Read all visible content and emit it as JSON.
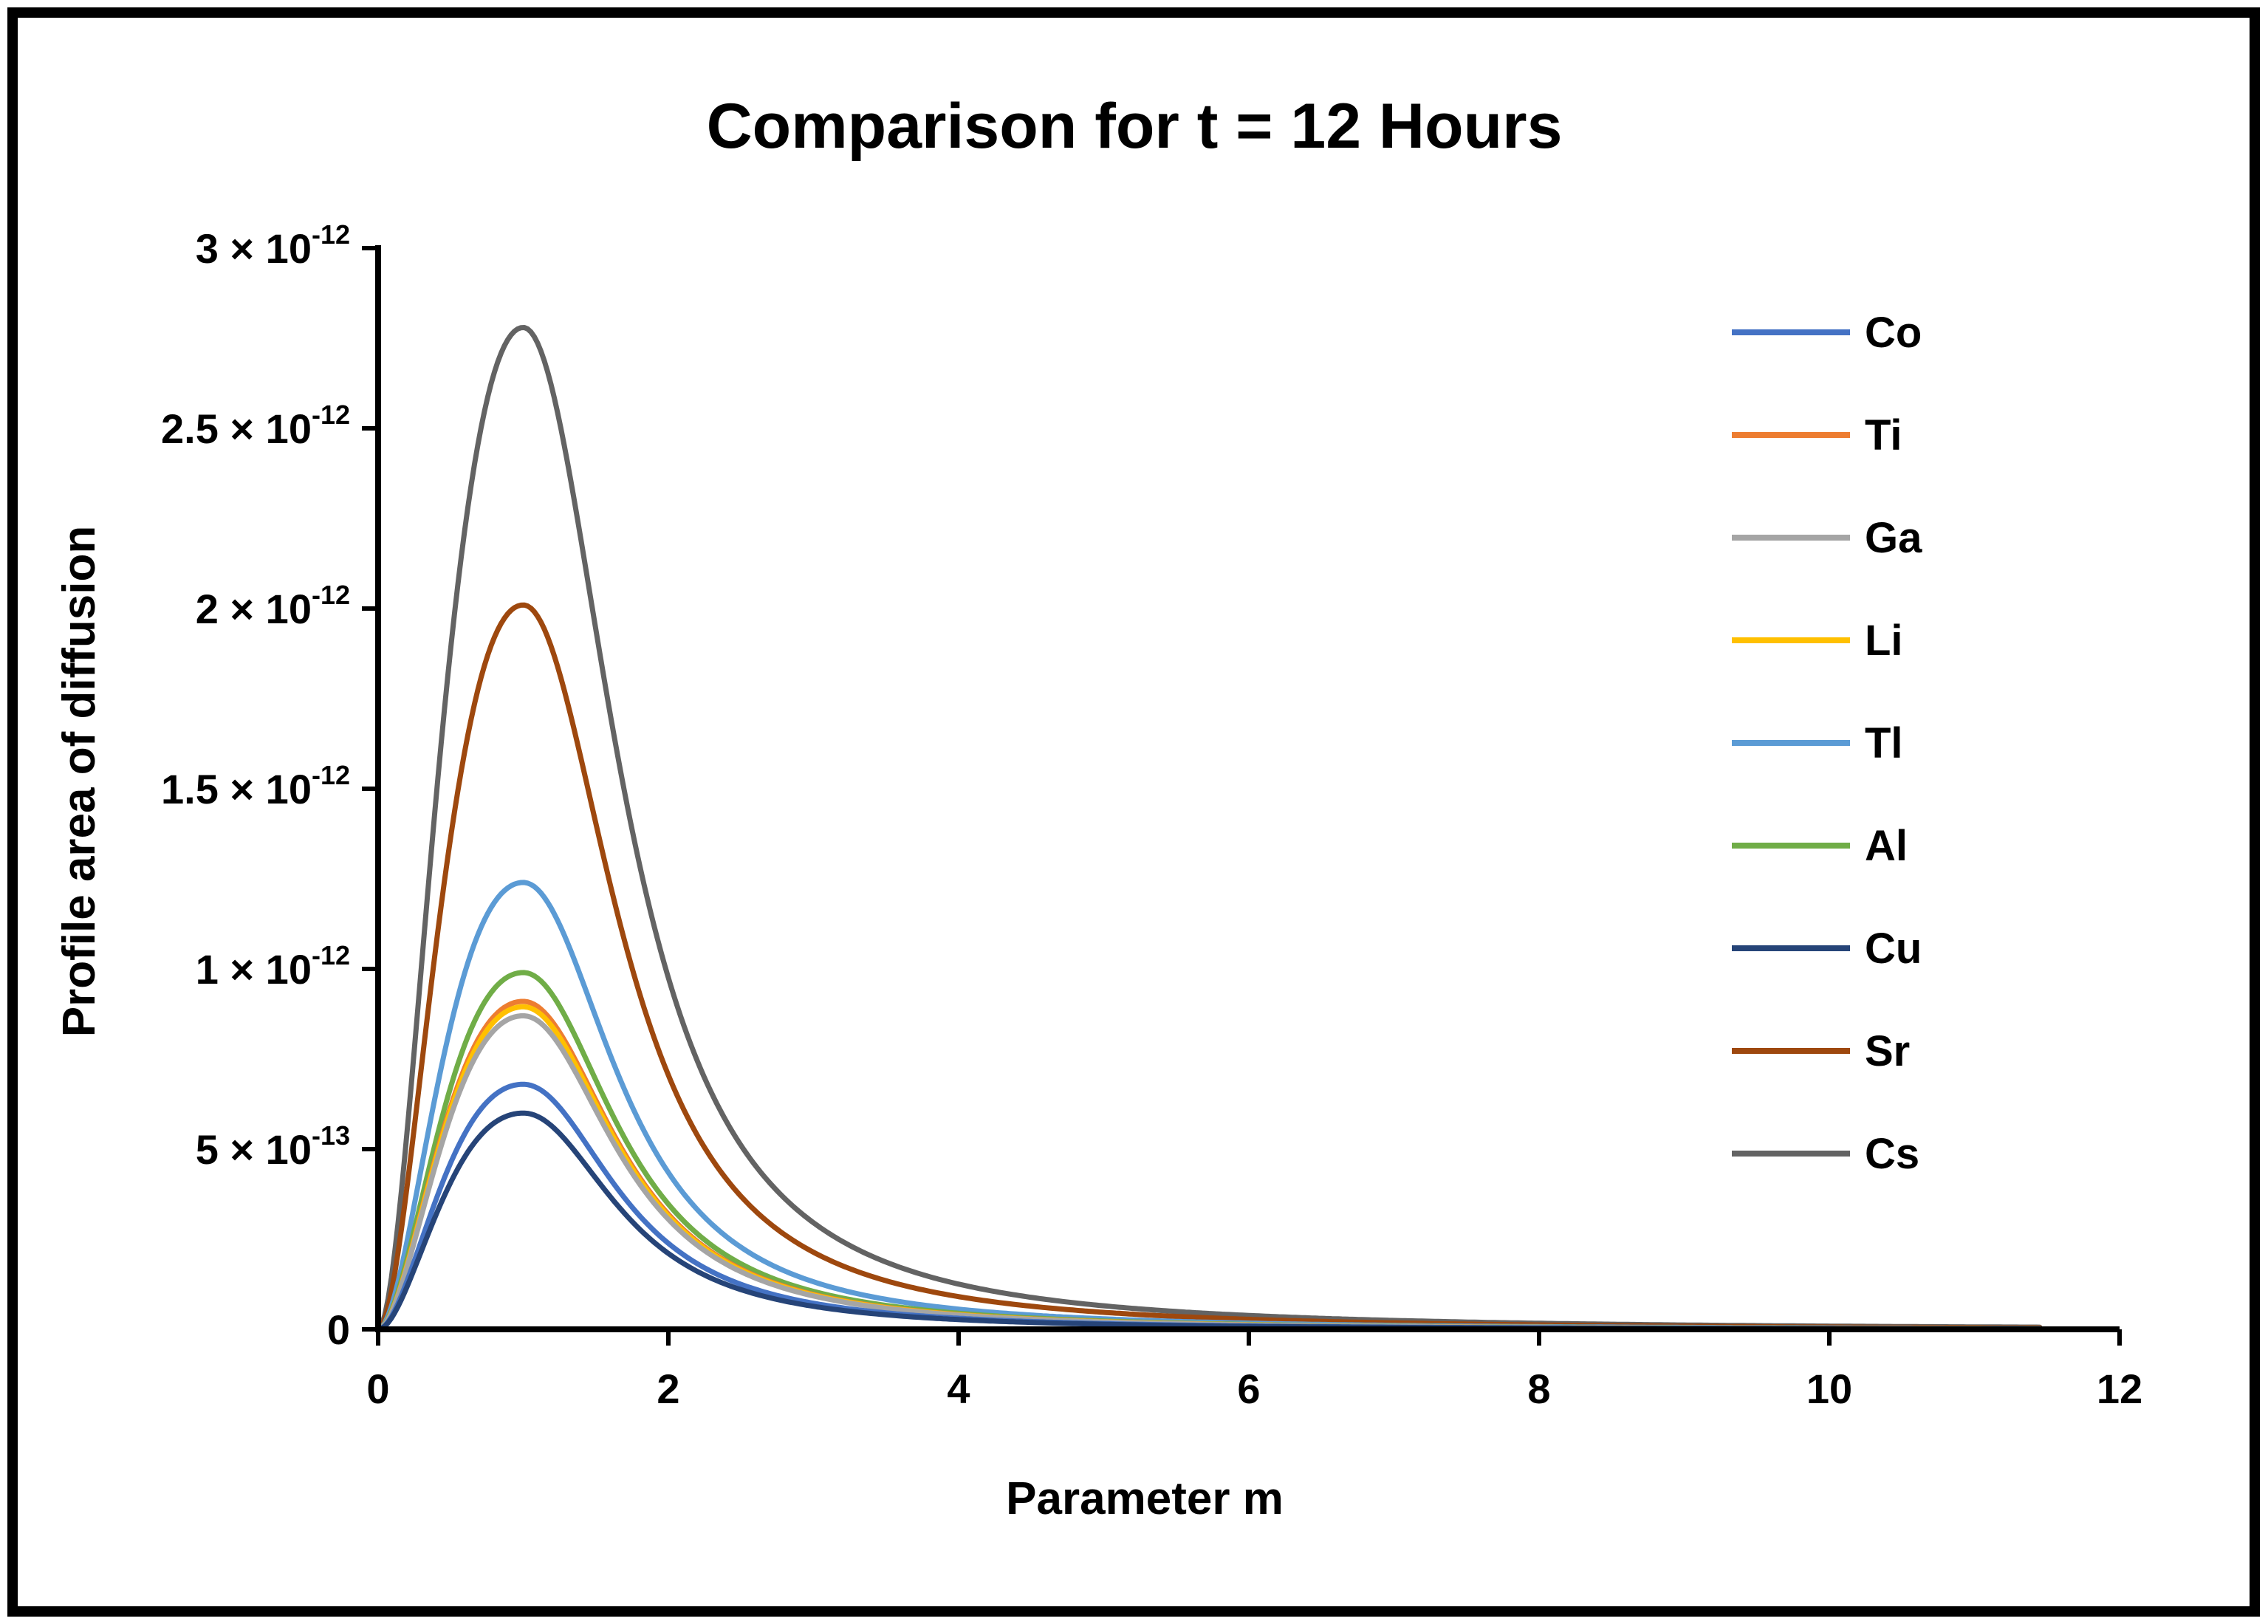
{
  "chart_data": {
    "type": "line",
    "title": "Comparison for t = 12 Hours",
    "xlabel": "Parameter m",
    "ylabel": "Profile area of diffusion",
    "xlim": [
      0,
      12
    ],
    "ylim": [
      0,
      3e-12
    ],
    "x_ticks": [
      0,
      2,
      4,
      6,
      8,
      10,
      12
    ],
    "x_tick_labels": [
      "0",
      "2",
      "4",
      "6",
      "8",
      "10",
      "12"
    ],
    "y_ticks": [
      0,
      5e-13,
      1e-12,
      1.5e-12,
      2e-12,
      2.5e-12,
      3e-12
    ],
    "y_tick_labels": [
      {
        "text": "0",
        "mantissa": "0",
        "exponent": ""
      },
      {
        "text": "5 × 10⁻¹³",
        "mantissa": "5 × 10",
        "exponent": "-13"
      },
      {
        "text": "1 × 10⁻¹²",
        "mantissa": "1 × 10",
        "exponent": "-12"
      },
      {
        "text": "1.5 × 10⁻¹²",
        "mantissa": "1.5 × 10",
        "exponent": "-12"
      },
      {
        "text": "2 × 10⁻¹²",
        "mantissa": "2 × 10",
        "exponent": "-12"
      },
      {
        "text": "2.5 × 10⁻¹²",
        "mantissa": "2.5 × 10",
        "exponent": "-12"
      },
      {
        "text": "3 × 10⁻¹²",
        "mantissa": "3 × 10",
        "exponent": "-12"
      }
    ],
    "grid": false,
    "legend_position": "top-right",
    "x_range_plotted": [
      0,
      11.45
    ],
    "curve_form": "y = peak * (e*m*exp(-m))^2 / (1 + 0.35*(m-1)^2 for m>1)",
    "peak_x": 1.0,
    "series": [
      {
        "name": "Co",
        "color": "#4472C4",
        "peak": 6.8e-13
      },
      {
        "name": "Ti",
        "color": "#ED7D31",
        "peak": 9.1e-13
      },
      {
        "name": "Ga",
        "color": "#A5A5A5",
        "peak": 8.7e-13
      },
      {
        "name": "Li",
        "color": "#FFC000",
        "peak": 8.95e-13
      },
      {
        "name": "Tl",
        "color": "#5B9BD5",
        "peak": 1.24e-12
      },
      {
        "name": "Al",
        "color": "#70AD47",
        "peak": 9.9e-13
      },
      {
        "name": "Cu",
        "color": "#264478",
        "peak": 6e-13
      },
      {
        "name": "Sr",
        "color": "#9E480E",
        "peak": 2.01e-12
      },
      {
        "name": "Cs",
        "color": "#636363",
        "peak": 2.78e-12
      }
    ]
  },
  "colors": {
    "frame": "#000000",
    "background": "#ffffff"
  }
}
